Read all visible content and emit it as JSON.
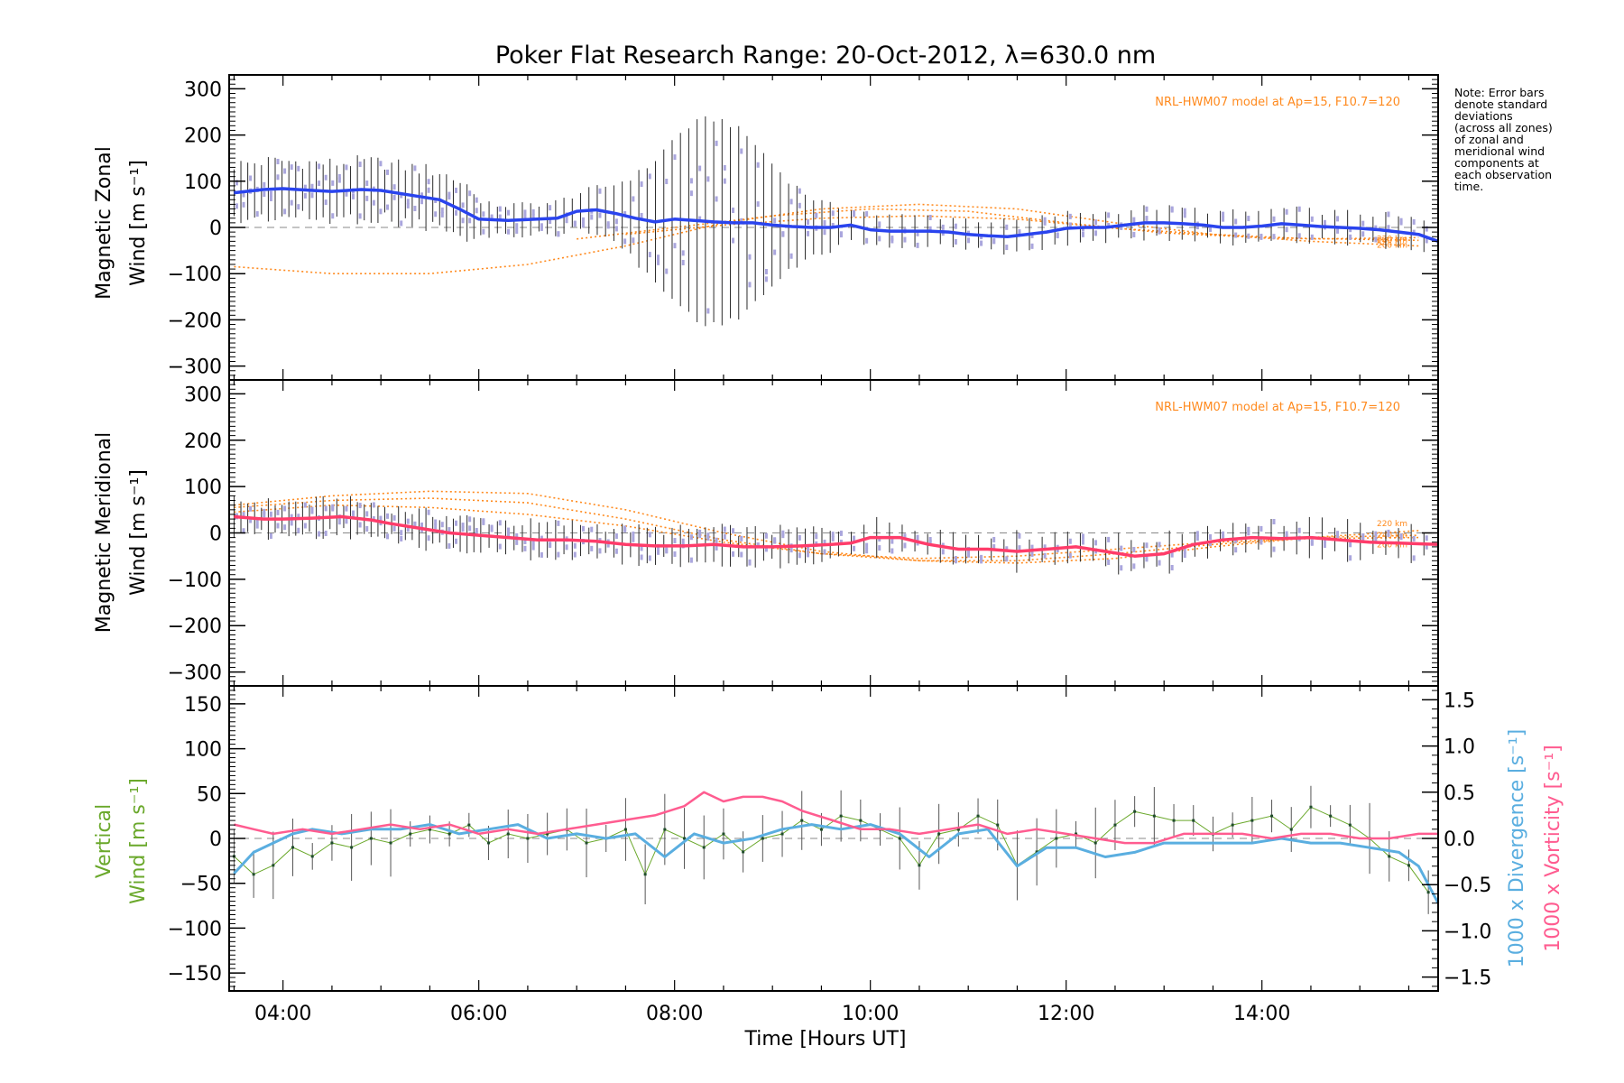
{
  "chart_data": {
    "title": "Poker Flat Research Range: 20-Oct-2012, λ=630.0 nm",
    "xlabel": "Time [Hours UT]",
    "xlim": [
      3.45,
      15.8
    ],
    "xticks": [
      4,
      6,
      8,
      10,
      12,
      14
    ],
    "xtick_labels": [
      "04:00",
      "06:00",
      "08:00",
      "10:00",
      "12:00",
      "14:00"
    ],
    "note": [
      "Note: Error bars",
      "denote standard",
      "deviations",
      "(across all zones)",
      "of zonal and",
      "meridional wind",
      "components at",
      "each observation",
      "time."
    ],
    "colors": {
      "zonal": "#2a44ee",
      "meridional": "#ff3c6a",
      "vertical": "#6aa82b",
      "divergence": "#5aaee0",
      "vorticity": "#ff5c90",
      "model": "#ff8a1e",
      "zones": "#aaa6dd",
      "errorbar": "#2a2a2a"
    },
    "panels": [
      {
        "type": "line",
        "ylabel_line1": "Magnetic Zonal",
        "ylabel_line2": "Wind [m s⁻¹]",
        "ylim": [
          -330,
          330
        ],
        "yticks": [
          -300,
          -200,
          -100,
          0,
          100,
          200,
          300
        ],
        "model_label": "NRL-HWM07 model at Ap=15, F10.7=120",
        "altitude_labels": [
          "220 km",
          "240 km",
          "260 km"
        ],
        "series": [
          {
            "x": [
              3.5,
              3.8,
              4.0,
              4.3,
              4.5,
              4.8,
              5.0,
              5.3,
              5.6,
              5.8,
              6.0,
              6.3,
              6.6,
              6.8,
              7.0,
              7.2,
              7.4,
              7.6,
              7.8,
              8.0,
              8.2,
              8.4,
              8.6,
              8.8,
              9.0,
              9.2,
              9.4,
              9.6,
              9.8,
              10.0,
              10.2,
              10.4,
              10.6,
              10.8,
              11.0,
              11.2,
              11.4,
              11.6,
              11.8,
              12.0,
              12.2,
              12.4,
              12.6,
              12.8,
              13.0,
              13.2,
              13.4,
              13.6,
              13.8,
              14.0,
              14.2,
              14.4,
              14.6,
              14.8,
              15.0,
              15.2,
              15.4,
              15.6,
              15.8
            ],
            "values": [
              75,
              82,
              84,
              80,
              78,
              82,
              80,
              70,
              60,
              40,
              18,
              15,
              18,
              20,
              35,
              38,
              30,
              20,
              12,
              18,
              15,
              12,
              10,
              10,
              5,
              2,
              0,
              0,
              5,
              -5,
              -8,
              -8,
              -8,
              -10,
              -15,
              -18,
              -20,
              -15,
              -10,
              -2,
              0,
              0,
              5,
              10,
              10,
              8,
              5,
              0,
              0,
              3,
              8,
              5,
              2,
              0,
              -2,
              -5,
              -10,
              -15,
              -30
            ]
          }
        ],
        "model_curves": [
          {
            "x": [
              3.5,
              4.5,
              5.5,
              6.5,
              7.5,
              8.5,
              9.5,
              10.5,
              11.5,
              12.5,
              13.5,
              14.5,
              15.6
            ],
            "values": [
              -85,
              -100,
              -100,
              -80,
              -40,
              10,
              40,
              50,
              40,
              10,
              -15,
              -30,
              -40
            ]
          },
          {
            "x": [
              7.0,
              8.0,
              9.0,
              10.0,
              11.0,
              12.0,
              13.0,
              14.0,
              15.6
            ],
            "values": [
              -25,
              0,
              25,
              40,
              35,
              10,
              -12,
              -22,
              -28
            ]
          },
          {
            "x": [
              7.5,
              8.5,
              9.5,
              10.5,
              11.5,
              12.5,
              13.5,
              14.5,
              15.6
            ],
            "values": [
              -15,
              5,
              20,
              25,
              18,
              -2,
              -15,
              -25,
              -22
            ]
          }
        ]
      },
      {
        "type": "line",
        "ylabel_line1": "Magnetic Meridional",
        "ylabel_line2": "Wind [m s⁻¹]",
        "ylim": [
          -330,
          330
        ],
        "yticks": [
          -300,
          -200,
          -100,
          0,
          100,
          200,
          300
        ],
        "model_label": "NRL-HWM07 model at Ap=15, F10.7=120",
        "altitude_labels": [
          "220 km",
          "240 km",
          "260 km"
        ],
        "series": [
          {
            "x": [
              3.5,
              3.8,
              4.0,
              4.3,
              4.6,
              4.9,
              5.1,
              5.4,
              5.7,
              6.0,
              6.3,
              6.6,
              6.9,
              7.2,
              7.5,
              7.8,
              8.1,
              8.4,
              8.7,
              9.0,
              9.3,
              9.6,
              9.8,
              10.0,
              10.3,
              10.6,
              10.9,
              11.2,
              11.5,
              11.8,
              12.1,
              12.4,
              12.7,
              13.0,
              13.3,
              13.6,
              13.9,
              14.2,
              14.5,
              14.8,
              15.1,
              15.4,
              15.8
            ],
            "values": [
              35,
              30,
              30,
              32,
              35,
              28,
              20,
              10,
              0,
              -5,
              -10,
              -15,
              -15,
              -18,
              -25,
              -28,
              -28,
              -25,
              -30,
              -30,
              -28,
              -25,
              -22,
              -10,
              -10,
              -25,
              -35,
              -35,
              -40,
              -35,
              -30,
              -40,
              -50,
              -45,
              -25,
              -15,
              -10,
              -12,
              -10,
              -15,
              -20,
              -22,
              -25
            ]
          }
        ],
        "model_curves": [
          {
            "x": [
              3.5,
              4.5,
              5.5,
              6.5,
              7.5,
              8.5,
              9.5,
              10.5,
              11.5,
              12.5,
              13.5,
              14.5,
              15.6
            ],
            "values": [
              60,
              80,
              90,
              85,
              50,
              0,
              -40,
              -60,
              -65,
              -55,
              -30,
              -10,
              5
            ]
          },
          {
            "x": [
              3.5,
              4.5,
              5.5,
              6.5,
              7.5,
              8.5,
              9.5,
              10.5,
              11.5,
              12.5,
              13.5,
              14.5,
              15.6
            ],
            "values": [
              55,
              70,
              75,
              65,
              30,
              -15,
              -45,
              -60,
              -60,
              -45,
              -25,
              -10,
              -5
            ]
          },
          {
            "x": [
              3.5,
              4.5,
              5.5,
              6.5,
              7.5,
              8.5,
              9.5,
              10.5,
              11.5,
              12.5,
              13.5,
              14.5,
              15.6
            ],
            "values": [
              45,
              60,
              55,
              40,
              15,
              -20,
              -45,
              -55,
              -50,
              -35,
              -20,
              -12,
              -10
            ]
          }
        ]
      },
      {
        "type": "line",
        "ylabel_line1": "Vertical",
        "ylabel_line2": "Wind [m s⁻¹]",
        "ylim": [
          -170,
          170
        ],
        "yticks": [
          -150,
          -100,
          -50,
          0,
          50,
          100,
          150
        ],
        "y2lim": [
          -1.65,
          1.65
        ],
        "y2ticks": [
          -1.5,
          -1.0,
          -0.5,
          0.0,
          0.5,
          1.0,
          1.5
        ],
        "y2tick_labels": [
          "−1.5",
          "−1.0",
          "−0.5",
          "0.0",
          "0.5",
          "1.0",
          "1.5"
        ],
        "y2label_divergence": "1000 x Divergence [s⁻¹]",
        "y2label_vorticity": "1000 x Vorticity [s⁻¹]",
        "series": [
          {
            "name": "Vertical",
            "x": [
              3.5,
              3.7,
              3.9,
              4.1,
              4.3,
              4.5,
              4.7,
              4.9,
              5.1,
              5.3,
              5.5,
              5.7,
              5.9,
              6.1,
              6.3,
              6.5,
              6.7,
              6.9,
              7.1,
              7.3,
              7.5,
              7.7,
              7.9,
              8.1,
              8.3,
              8.5,
              8.7,
              8.9,
              9.1,
              9.3,
              9.5,
              9.7,
              9.9,
              10.1,
              10.3,
              10.5,
              10.7,
              10.9,
              11.1,
              11.3,
              11.5,
              11.7,
              11.9,
              12.1,
              12.3,
              12.5,
              12.7,
              12.9,
              13.1,
              13.3,
              13.5,
              13.7,
              13.9,
              14.1,
              14.3,
              14.5,
              14.7,
              14.9,
              15.1,
              15.3,
              15.5,
              15.7
            ],
            "values": [
              -20,
              -40,
              -30,
              -10,
              -20,
              -5,
              -10,
              0,
              -5,
              5,
              10,
              5,
              15,
              -5,
              5,
              0,
              5,
              10,
              -5,
              0,
              10,
              -40,
              10,
              0,
              -10,
              5,
              -15,
              0,
              5,
              20,
              10,
              25,
              20,
              10,
              0,
              -30,
              5,
              10,
              25,
              15,
              -30,
              -15,
              0,
              5,
              -5,
              15,
              30,
              25,
              20,
              20,
              5,
              15,
              20,
              25,
              10,
              35,
              25,
              15,
              0,
              -20,
              -30,
              -60
            ]
          },
          {
            "name": "Divergence",
            "axis": "y2",
            "x": [
              3.5,
              3.7,
              3.9,
              4.1,
              4.3,
              4.6,
              4.9,
              5.2,
              5.5,
              5.8,
              6.1,
              6.4,
              6.7,
              7.0,
              7.3,
              7.6,
              7.9,
              8.2,
              8.5,
              8.8,
              9.1,
              9.4,
              9.7,
              10.0,
              10.3,
              10.6,
              10.9,
              11.2,
              11.5,
              11.8,
              12.1,
              12.4,
              12.7,
              13.0,
              13.3,
              13.6,
              13.9,
              14.2,
              14.5,
              14.8,
              15.1,
              15.4,
              15.6,
              15.8
            ],
            "values": [
              -0.38,
              -0.15,
              -0.05,
              0.05,
              0.1,
              0.05,
              0.1,
              0.1,
              0.15,
              0.05,
              0.1,
              0.15,
              0.0,
              0.05,
              0.0,
              0.05,
              -0.2,
              0.05,
              -0.05,
              0.0,
              0.1,
              0.15,
              0.1,
              0.15,
              0.05,
              -0.2,
              0.05,
              0.1,
              -0.3,
              -0.1,
              -0.1,
              -0.2,
              -0.15,
              -0.05,
              -0.05,
              -0.05,
              -0.05,
              0.0,
              -0.05,
              -0.05,
              -0.1,
              -0.15,
              -0.3,
              -0.7
            ]
          },
          {
            "name": "Vorticity",
            "axis": "y2",
            "x": [
              3.5,
              3.7,
              3.9,
              4.2,
              4.5,
              4.8,
              5.1,
              5.4,
              5.7,
              6.0,
              6.3,
              6.6,
              6.9,
              7.2,
              7.5,
              7.8,
              8.1,
              8.3,
              8.5,
              8.7,
              8.9,
              9.1,
              9.3,
              9.6,
              9.9,
              10.2,
              10.5,
              10.8,
              11.1,
              11.4,
              11.7,
              12.0,
              12.3,
              12.6,
              12.9,
              13.2,
              13.5,
              13.8,
              14.1,
              14.4,
              14.7,
              15.0,
              15.3,
              15.6,
              15.8
            ],
            "values": [
              0.15,
              0.1,
              0.05,
              0.1,
              0.05,
              0.1,
              0.15,
              0.1,
              0.15,
              0.05,
              0.1,
              0.05,
              0.1,
              0.15,
              0.2,
              0.25,
              0.35,
              0.5,
              0.4,
              0.45,
              0.45,
              0.4,
              0.3,
              0.2,
              0.1,
              0.1,
              0.05,
              0.1,
              0.15,
              0.05,
              0.1,
              0.05,
              0.0,
              -0.05,
              -0.05,
              0.05,
              0.05,
              0.05,
              0.0,
              0.05,
              0.05,
              0.0,
              0.0,
              0.05,
              0.05
            ]
          }
        ]
      }
    ]
  }
}
